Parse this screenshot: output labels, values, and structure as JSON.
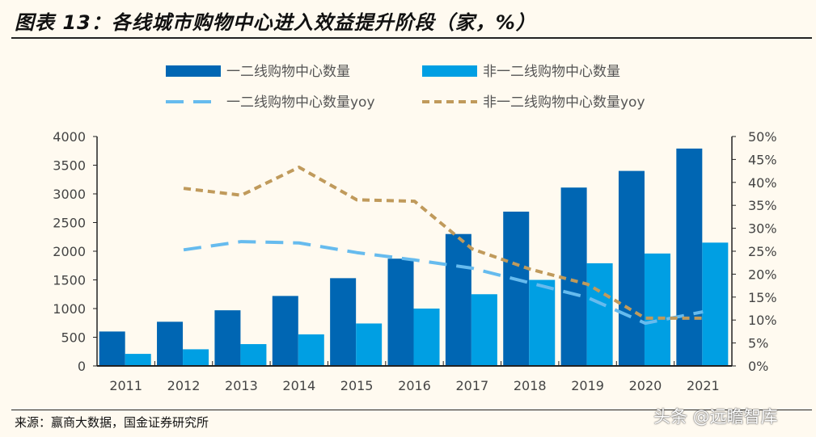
{
  "title": "图表 13：各线城市购物中心进入效益提升阶段（家，%）",
  "source": "来源：赢商大数据，国金证券研究所",
  "watermark": "头条 @远瞻智库",
  "chart_data": {
    "type": "bar+line",
    "categories": [
      "2011",
      "2012",
      "2013",
      "2014",
      "2015",
      "2016",
      "2017",
      "2018",
      "2019",
      "2020",
      "2021"
    ],
    "series": [
      {
        "name": "一二线购物中心数量",
        "kind": "bar",
        "axis": "left",
        "color": "#0066b3",
        "values": [
          600,
          770,
          970,
          1220,
          1530,
          1870,
          2300,
          2690,
          3110,
          3400,
          3790
        ]
      },
      {
        "name": "非一二线购物中心数量",
        "kind": "bar",
        "axis": "left",
        "color": "#009fe3",
        "values": [
          210,
          290,
          380,
          550,
          740,
          1000,
          1250,
          1500,
          1790,
          1960,
          2150
        ]
      },
      {
        "name": "一二线购物中心数量yoy",
        "kind": "line",
        "axis": "right",
        "color": "#66bbee",
        "dash": "long",
        "values": [
          null,
          25.3,
          27.1,
          26.8,
          24.7,
          23.1,
          21.3,
          18.1,
          14.9,
          9.3,
          11.8
        ]
      },
      {
        "name": "非一二线购物中心数量yoy",
        "kind": "line",
        "axis": "right",
        "color": "#c09a5b",
        "dash": "short",
        "values": [
          null,
          38.7,
          37.2,
          43.3,
          36.2,
          35.9,
          25.5,
          21.1,
          17.8,
          10.4,
          10.4
        ]
      }
    ],
    "left_axis": {
      "ylim": [
        0,
        4000
      ],
      "ticks": [
        "0",
        "500",
        "1000",
        "1500",
        "2000",
        "2500",
        "3000",
        "3500",
        "4000"
      ]
    },
    "right_axis": {
      "ylim": [
        0,
        50
      ],
      "ticks": [
        "0%",
        "5%",
        "10%",
        "15%",
        "20%",
        "25%",
        "30%",
        "35%",
        "40%",
        "45%",
        "50%"
      ]
    },
    "grid": false,
    "legend": "top"
  }
}
